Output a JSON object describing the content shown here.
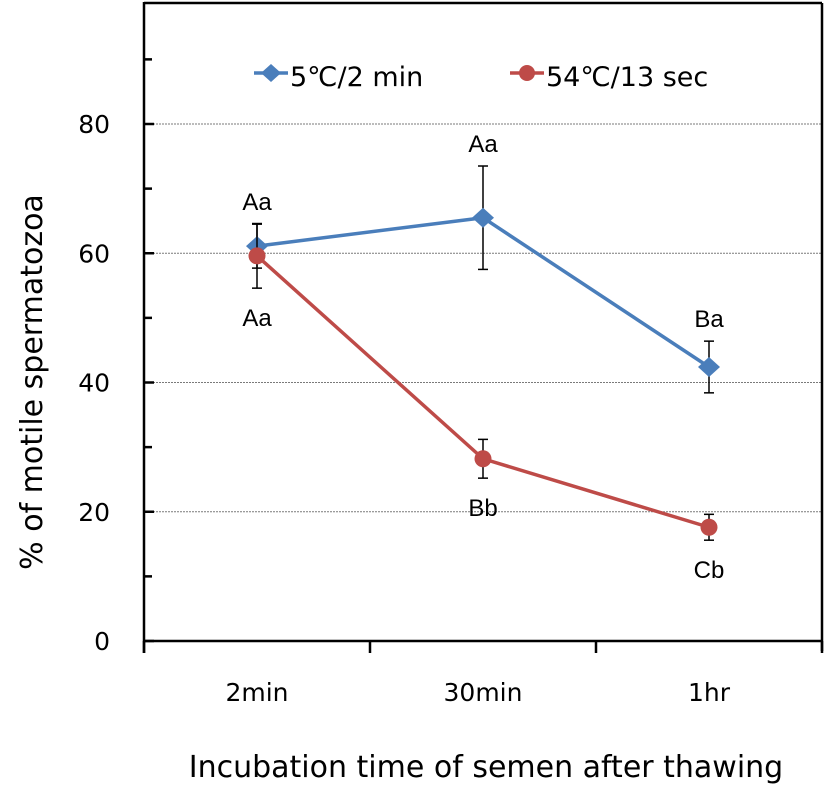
{
  "chart_data": {
    "type": "line",
    "title": "",
    "xlabel": "Incubation time of semen after thawing",
    "ylabel": "% of motile spermatozoa",
    "categories": [
      "2min",
      "30min",
      "1hr"
    ],
    "ylim": [
      0,
      99
    ],
    "yticks_major": [
      0,
      20,
      40,
      60,
      80
    ],
    "yticks_minor": [
      10,
      30,
      50,
      70,
      90
    ],
    "grid": "horizontal dotted at major ticks",
    "legend_position": "top",
    "series": [
      {
        "name": "5℃/2 min",
        "color": "#4a7ebb",
        "marker": "diamond",
        "values": [
          61.1,
          65.5,
          42.4
        ],
        "errors": [
          3.4,
          8.0,
          4.0
        ],
        "labels": [
          "Aa",
          "Aa",
          "Ba"
        ],
        "label_position": "above"
      },
      {
        "name": "54℃/13 sec",
        "color": "#be4b48",
        "marker": "circle",
        "values": [
          59.6,
          28.2,
          17.6
        ],
        "errors": [
          5.0,
          3.0,
          2.0
        ],
        "labels": [
          "Aa",
          "Bb",
          "Cb"
        ],
        "label_position": "below"
      }
    ]
  }
}
